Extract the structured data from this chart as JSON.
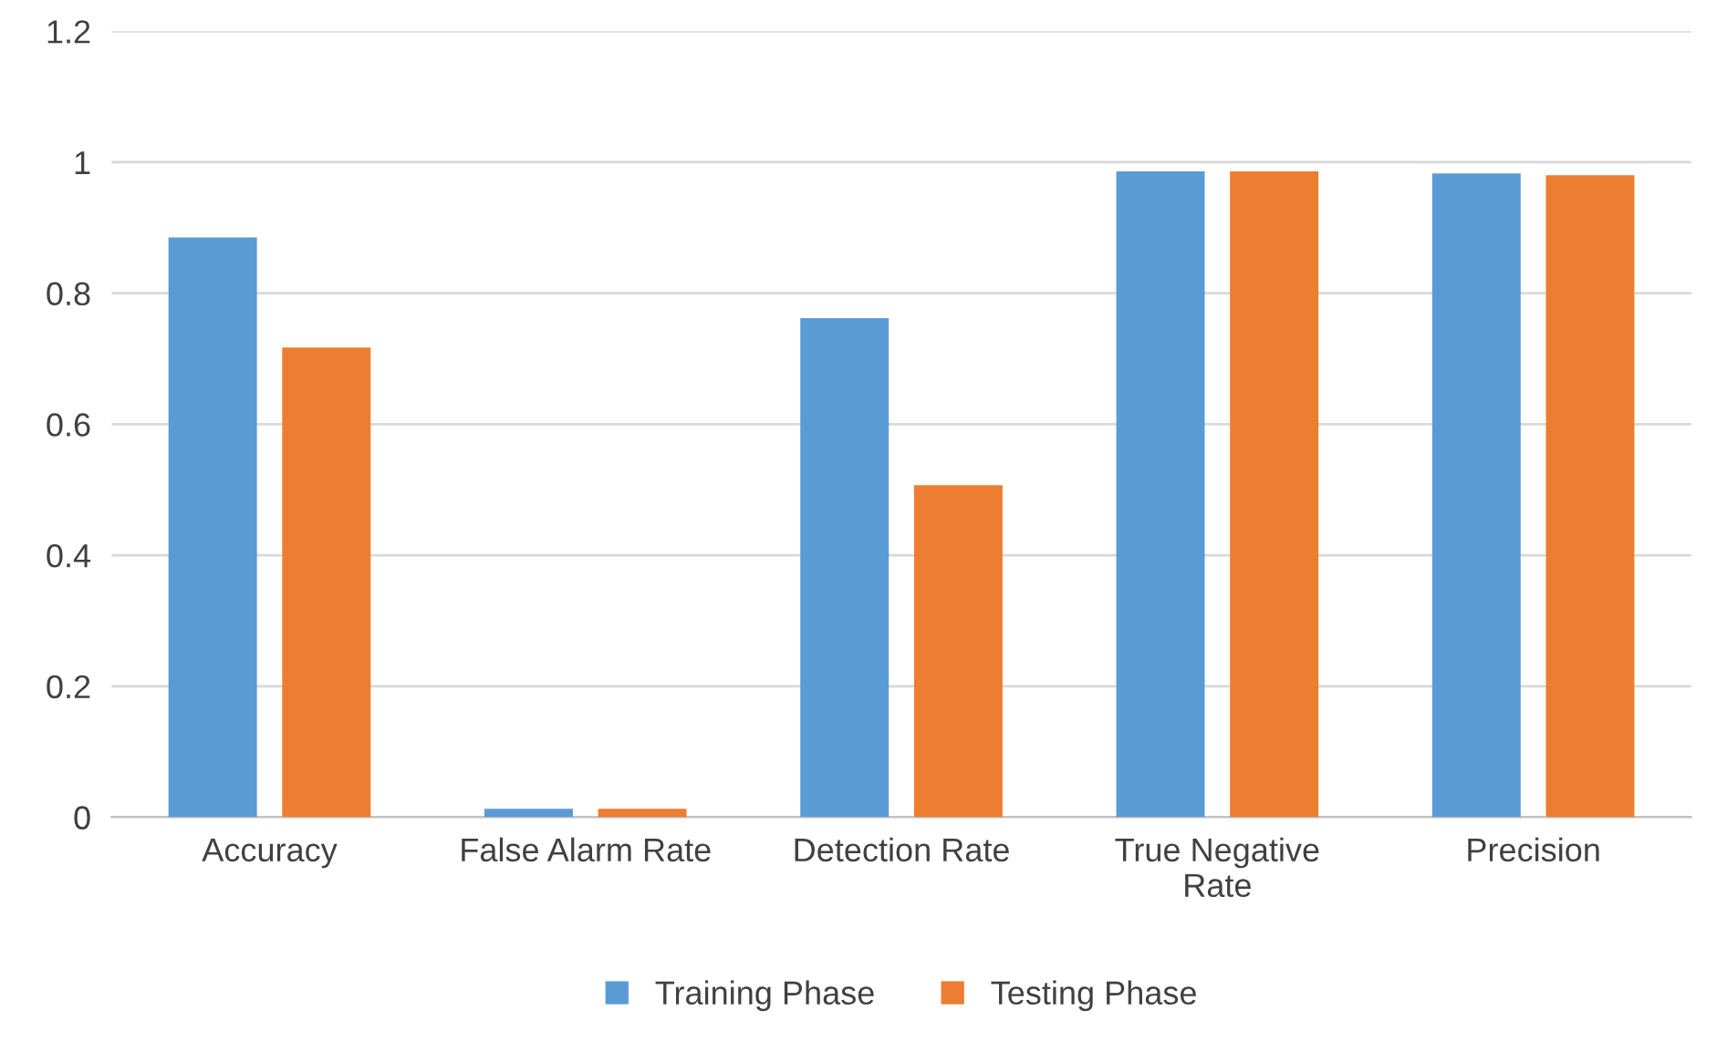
{
  "chart_data": {
    "type": "bar",
    "categories": [
      "Accuracy",
      "False Alarm Rate",
      "Detection Rate",
      "True Negative\nRate",
      "Precision"
    ],
    "series": [
      {
        "name": "Training Phase",
        "color": "#5b9bd5",
        "values": [
          0.885,
          0.013,
          0.762,
          0.986,
          0.983
        ]
      },
      {
        "name": "Testing Phase",
        "color": "#ed7d31",
        "values": [
          0.717,
          0.013,
          0.507,
          0.986,
          0.98
        ]
      }
    ],
    "ylim": [
      0,
      1.2
    ],
    "yticks": [
      0,
      0.2,
      0.4,
      0.6,
      0.8,
      1,
      1.2
    ],
    "grid": "y",
    "legend": "bottom"
  }
}
